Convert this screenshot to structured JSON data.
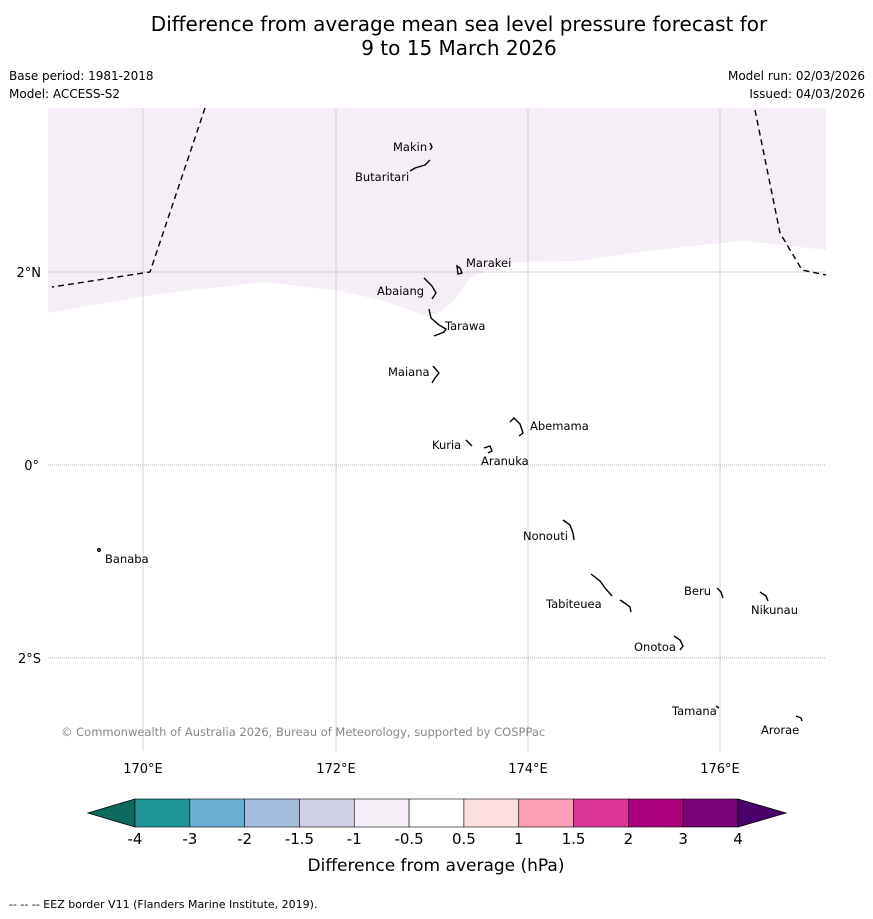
{
  "title": {
    "line1": "Difference from average mean sea level pressure forecast for",
    "line2": "9 to 15 March 2026"
  },
  "meta": {
    "base_period": "Base period: 1981-2018",
    "model": "Model: ACCESS-S2",
    "model_run": "Model run: 02/03/2026",
    "issued": "Issued: 04/03/2026"
  },
  "map": {
    "lon_labels": [
      "170°E",
      "172°E",
      "174°E",
      "176°E"
    ],
    "lat_labels": [
      "2°N",
      "0°",
      "2°S"
    ],
    "copyright": "© Commonwealth of Australia 2026, Bureau of Meteorology, supported by COSPPac",
    "places": [
      "Makin",
      "Butaritari",
      "Marakei",
      "Abaiang",
      "Tarawa",
      "Maiana",
      "Abemama",
      "Kuria",
      "Aranuka",
      "Nonouti",
      "Banaba",
      "Beru",
      "Nikunau",
      "Tabiteuea",
      "Onotoa",
      "Tamana",
      "Arorae"
    ],
    "shaded_category": "-1 to -0.5",
    "shaded_color": "#f5eef7"
  },
  "legend": {
    "ticks": [
      "-4",
      "-3",
      "-2",
      "-1.5",
      "-1",
      "-0.5",
      "0.5",
      "1",
      "1.5",
      "2",
      "3",
      "4"
    ],
    "colors": [
      "#1f9695",
      "#6baed6",
      "#a6bddb",
      "#d0d1e6",
      "#f5eef7",
      "#ffffff",
      "#fde0dd",
      "#fa9fb5",
      "#dd3497",
      "#ae017e",
      "#7a0177"
    ],
    "under_color": "#0d6b5e",
    "over_color": "#49006a",
    "label": "Difference from average (hPa)"
  },
  "footer": "-- -- -- EEZ border V11 (Flanders Marine Institute, 2019)."
}
